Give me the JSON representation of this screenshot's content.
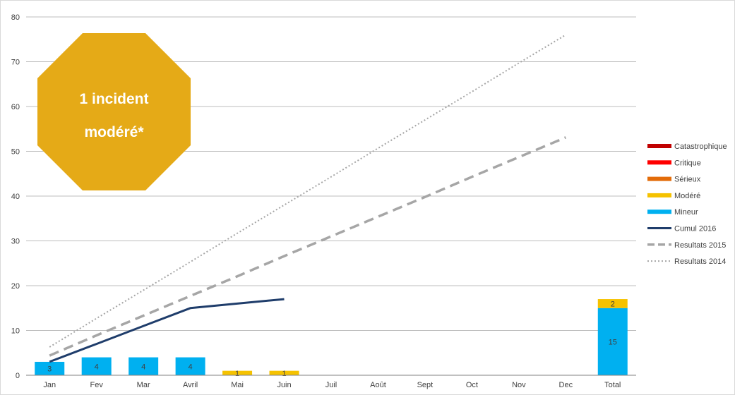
{
  "chart_data": {
    "type": "bar",
    "categories": [
      "Jan",
      "Fev",
      "Mar",
      "Avril",
      "Mai",
      "Juin",
      "Juil",
      "Août",
      "Sept",
      "Oct",
      "Nov",
      "Dec",
      "Total"
    ],
    "ylim": [
      0,
      80
    ],
    "yticks": [
      0,
      10,
      20,
      30,
      40,
      50,
      60,
      70,
      80
    ],
    "grid": true,
    "legend_position": "right",
    "series": [
      {
        "name": "Catastrophique",
        "kind": "bar",
        "color": "#c00000",
        "values": [
          0,
          0,
          0,
          0,
          0,
          0,
          0,
          0,
          0,
          0,
          0,
          0,
          0
        ]
      },
      {
        "name": "Critique",
        "kind": "bar",
        "color": "#ff0000",
        "values": [
          0,
          0,
          0,
          0,
          0,
          0,
          0,
          0,
          0,
          0,
          0,
          0,
          0
        ]
      },
      {
        "name": "Sérieux",
        "kind": "bar",
        "color": "#e36c09",
        "values": [
          0,
          0,
          0,
          0,
          0,
          0,
          0,
          0,
          0,
          0,
          0,
          0,
          0
        ]
      },
      {
        "name": "Modéré",
        "kind": "bar",
        "color": "#f5c200",
        "values": [
          0,
          0,
          0,
          0,
          1,
          1,
          0,
          0,
          0,
          0,
          0,
          0,
          2
        ],
        "labels": [
          "",
          "",
          "",
          "",
          "1",
          "1",
          "",
          "",
          "",
          "",
          "",
          "",
          "2"
        ]
      },
      {
        "name": "Mineur",
        "kind": "bar",
        "color": "#00b0f0",
        "values": [
          3,
          4,
          4,
          4,
          0,
          0,
          0,
          0,
          0,
          0,
          0,
          0,
          15
        ],
        "labels": [
          "3",
          "4",
          "4",
          "4",
          "",
          "",
          "",
          "",
          "",
          "",
          "",
          "",
          "15"
        ]
      },
      {
        "name": "Cumul 2016",
        "kind": "line",
        "style": "solid",
        "color": "#1f3d6b",
        "values": [
          3,
          7,
          11,
          15,
          16,
          17,
          null,
          null,
          null,
          null,
          null,
          null,
          null
        ]
      },
      {
        "name": "Resultats 2015",
        "kind": "line",
        "style": "dashed",
        "color": "#a6a6a6",
        "values": [
          4.4,
          8.9,
          13.3,
          17.7,
          22.1,
          26.6,
          31.0,
          35.4,
          39.8,
          44.3,
          48.7,
          53.1,
          null
        ]
      },
      {
        "name": "Resultats 2014",
        "kind": "line",
        "style": "dotted",
        "color": "#a6a6a6",
        "values": [
          6.3,
          12.7,
          19.0,
          25.3,
          31.7,
          38.0,
          44.3,
          50.7,
          57.0,
          63.3,
          69.7,
          76.0,
          null
        ]
      }
    ],
    "legend_order": [
      "Catastrophique",
      "Critique",
      "Sérieux",
      "Modéré",
      "Mineur",
      "Cumul 2016",
      "Resultats 2015",
      "Resultats 2014"
    ],
    "annotation": {
      "lines": [
        "1 incident",
        "modéré*"
      ],
      "color": "#e5aa17"
    }
  }
}
